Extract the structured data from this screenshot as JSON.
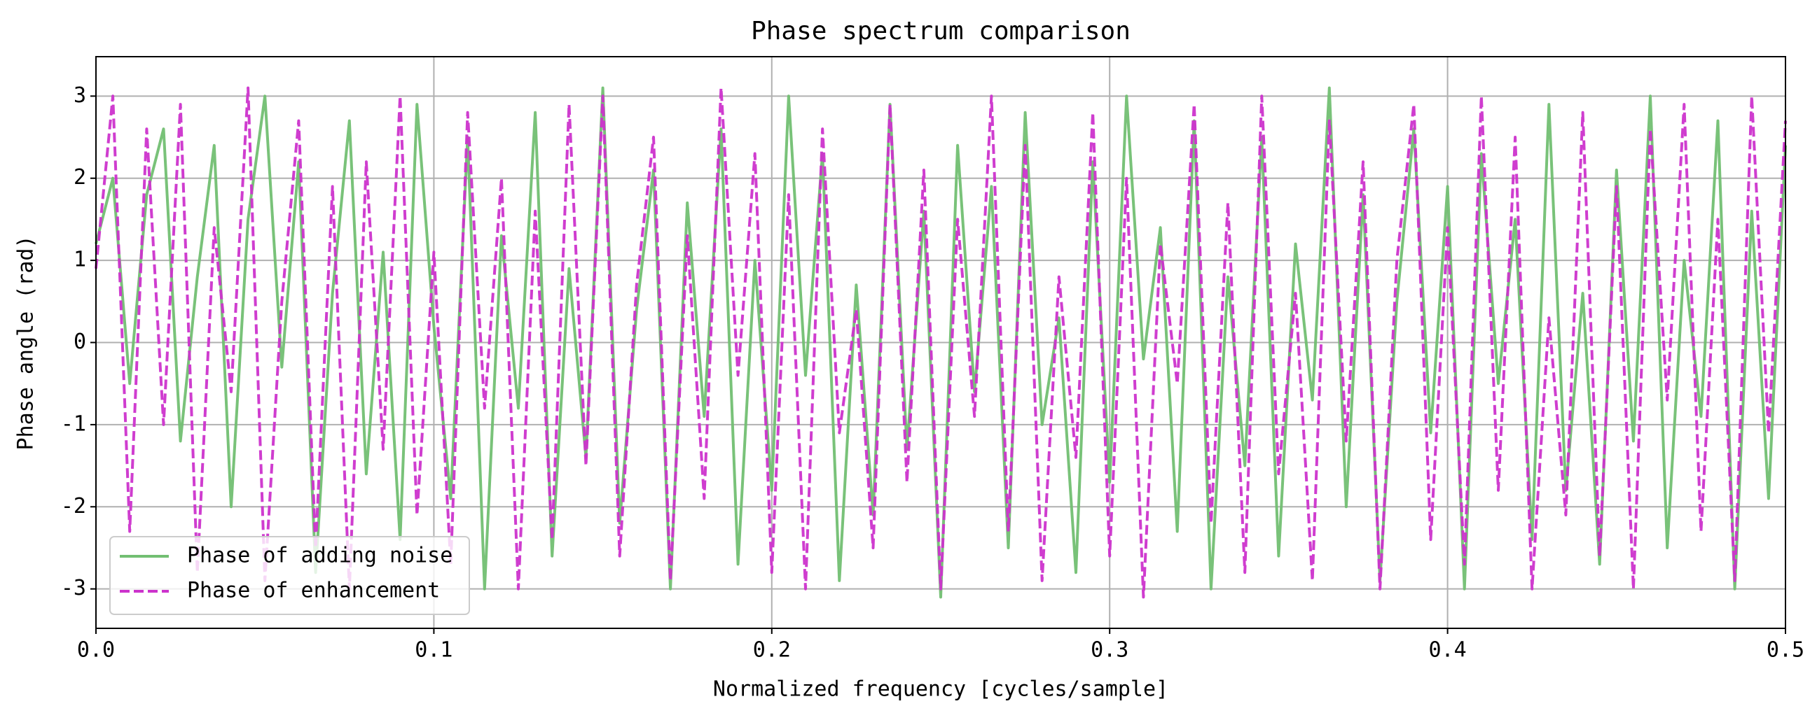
{
  "chart_data": {
    "type": "line",
    "title": "Phase spectrum comparison",
    "xlabel": "Normalized frequency [cycles/sample]",
    "ylabel": "Phase angle (rad)",
    "x": [
      0,
      0.005,
      0.01,
      0.015,
      0.02,
      0.025,
      0.03,
      0.035,
      0.04,
      0.045,
      0.05,
      0.055,
      0.06,
      0.065,
      0.07,
      0.075,
      0.08,
      0.085,
      0.09,
      0.095,
      0.1,
      0.105,
      0.11,
      0.115,
      0.12,
      0.125,
      0.13,
      0.135,
      0.14,
      0.145,
      0.15,
      0.155,
      0.16,
      0.165,
      0.17,
      0.175,
      0.18,
      0.185,
      0.19,
      0.195,
      0.2,
      0.205,
      0.21,
      0.215,
      0.22,
      0.225,
      0.23,
      0.235,
      0.24,
      0.245,
      0.25,
      0.255,
      0.26,
      0.265,
      0.27,
      0.275,
      0.28,
      0.285,
      0.29,
      0.295,
      0.3,
      0.305,
      0.31,
      0.315,
      0.32,
      0.325,
      0.33,
      0.335,
      0.34,
      0.345,
      0.35,
      0.355,
      0.36,
      0.365,
      0.37,
      0.375,
      0.38,
      0.385,
      0.39,
      0.395,
      0.4,
      0.405,
      0.41,
      0.415,
      0.42,
      0.425,
      0.43,
      0.435,
      0.44,
      0.445,
      0.45,
      0.455,
      0.46,
      0.465,
      0.47,
      0.475,
      0.48,
      0.485,
      0.49,
      0.495,
      0.5
    ],
    "series": [
      {
        "name": "Phase of adding noise",
        "color": "#72bf72",
        "linestyle": "solid",
        "values": [
          1.2,
          2.0,
          -0.5,
          1.8,
          2.6,
          -1.2,
          0.8,
          2.4,
          -2.0,
          1.5,
          3.0,
          -0.3,
          2.2,
          -2.8,
          0.6,
          2.7,
          -1.6,
          1.1,
          -2.4,
          2.9,
          0.2,
          -1.9,
          2.5,
          -3.0,
          1.3,
          -0.8,
          2.8,
          -2.6,
          0.9,
          -1.4,
          3.1,
          -2.2,
          0.4,
          2.1,
          -3.0,
          1.7,
          -0.9,
          2.6,
          -2.7,
          1.0,
          -1.8,
          3.0,
          -0.4,
          2.3,
          -2.9,
          0.7,
          -2.1,
          2.9,
          -1.3,
          1.6,
          -3.1,
          2.4,
          -0.6,
          1.9,
          -2.5,
          2.8,
          -1.0,
          0.3,
          -2.8,
          2.2,
          -1.7,
          3.0,
          -0.2,
          1.4,
          -2.3,
          2.7,
          -3.0,
          0.8,
          -1.5,
          2.5,
          -2.6,
          1.2,
          -0.7,
          3.1,
          -2.0,
          1.8,
          -2.9,
          0.5,
          2.6,
          -1.1,
          1.9,
          -3.0,
          2.3,
          -0.5,
          1.5,
          -2.4,
          2.9,
          -1.8,
          0.6,
          -2.7,
          2.1,
          -1.2,
          3.0,
          -2.5,
          1.0,
          -0.9,
          2.7,
          -3.0,
          1.6,
          -1.9,
          2.4
        ]
      },
      {
        "name": "Phase of enhancement",
        "color": "#cc33cc",
        "linestyle": "dashed",
        "values": [
          0.9,
          3.0,
          -2.3,
          2.6,
          -1.0,
          2.9,
          -2.8,
          1.4,
          -0.6,
          3.1,
          -2.9,
          0.5,
          2.7,
          -2.5,
          1.9,
          -3.0,
          2.2,
          -1.3,
          3.0,
          -2.1,
          1.1,
          -2.7,
          2.8,
          -0.8,
          2.0,
          -3.0,
          1.6,
          -2.4,
          2.9,
          -1.5,
          3.0,
          -2.6,
          0.7,
          2.5,
          -2.9,
          1.3,
          -1.9,
          3.1,
          -0.4,
          2.3,
          -2.8,
          1.8,
          -3.0,
          2.6,
          -1.1,
          0.4,
          -2.5,
          2.9,
          -1.7,
          2.1,
          -3.0,
          1.5,
          -0.9,
          3.0,
          -2.3,
          2.4,
          -2.9,
          0.8,
          -1.4,
          2.8,
          -2.6,
          2.0,
          -3.1,
          1.2,
          -0.5,
          2.9,
          -2.2,
          1.7,
          -2.8,
          3.0,
          -1.6,
          0.6,
          -2.9,
          2.7,
          -1.2,
          2.2,
          -3.0,
          1.0,
          2.9,
          -2.4,
          1.4,
          -2.7,
          3.0,
          -1.8,
          2.5,
          -3.0,
          0.3,
          -2.1,
          2.8,
          -2.6,
          1.9,
          -3.0,
          2.6,
          -0.7,
          2.9,
          -2.3,
          1.5,
          -2.9,
          3.0,
          -1.1,
          2.7
        ]
      }
    ],
    "xlim": [
      0,
      0.5
    ],
    "xticks": [
      {
        "value": 0,
        "label": "0.0"
      },
      0.1,
      0.2,
      0.3,
      0.4,
      0.5
    ],
    "ylim": [
      -3.48,
      3.48
    ],
    "yticks": [
      -3,
      -2,
      -1,
      0,
      1,
      2,
      3
    ],
    "grid": true,
    "legend": "lower left"
  }
}
